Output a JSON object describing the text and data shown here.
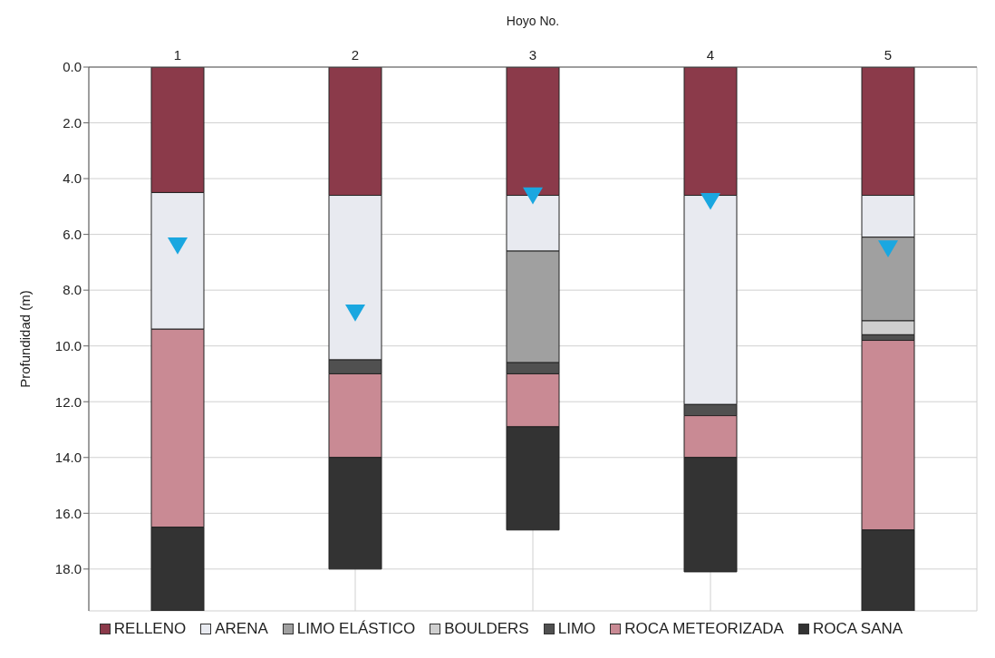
{
  "chart_data": {
    "type": "bar",
    "stacked": true,
    "xlabel": "Hoyo No.",
    "ylabel": "Profundidad (m)",
    "categories": [
      "1",
      "2",
      "3",
      "4",
      "5"
    ],
    "ylim": [
      19.5,
      0
    ],
    "yticks": [
      {
        "value": 0,
        "label": "0.0"
      },
      {
        "value": 2,
        "label": "2.0"
      },
      {
        "value": 4,
        "label": "4.0"
      },
      {
        "value": 6,
        "label": "6.0"
      },
      {
        "value": 8,
        "label": "8.0"
      },
      {
        "value": 10,
        "label": "10.0"
      },
      {
        "value": 12,
        "label": "12.0"
      },
      {
        "value": 14,
        "label": "14.0"
      },
      {
        "value": 16,
        "label": "16.0"
      },
      {
        "value": 18,
        "label": "18.0"
      }
    ],
    "grid": true,
    "legend": "bottom",
    "series": [
      {
        "name": "RELLENO",
        "color": "#8b3a4a",
        "values": [
          4.5,
          4.6,
          4.6,
          4.6,
          4.6
        ]
      },
      {
        "name": "ARENA",
        "color": "#e8eaf0",
        "values": [
          4.9,
          5.9,
          2.0,
          7.5,
          1.5
        ]
      },
      {
        "name": "LIMO ELÁSTICO",
        "color": "#a0a0a0",
        "values": [
          0,
          0,
          4.0,
          0,
          3.0
        ]
      },
      {
        "name": "BOULDERS",
        "color": "#cfcfcf",
        "values": [
          0,
          0,
          0,
          0,
          0.5
        ]
      },
      {
        "name": "LIMO",
        "color": "#505050",
        "values": [
          0,
          0.5,
          0.4,
          0.4,
          0.2
        ]
      },
      {
        "name": "ROCA METEORIZADA",
        "color": "#c98a94",
        "values": [
          7.1,
          3.0,
          1.9,
          1.5,
          6.8
        ]
      },
      {
        "name": "ROCA SANA",
        "color": "#333333",
        "values": [
          3.0,
          4.0,
          3.7,
          4.1,
          2.9
        ]
      },
      {
        "type": "scatter",
        "color": "#1aa7e0",
        "marker": "triangle",
        "x": [
          "1",
          "2",
          "3",
          "4",
          "5"
        ],
        "values": [
          6.4,
          8.8,
          4.6,
          4.8,
          6.5
        ]
      }
    ]
  }
}
